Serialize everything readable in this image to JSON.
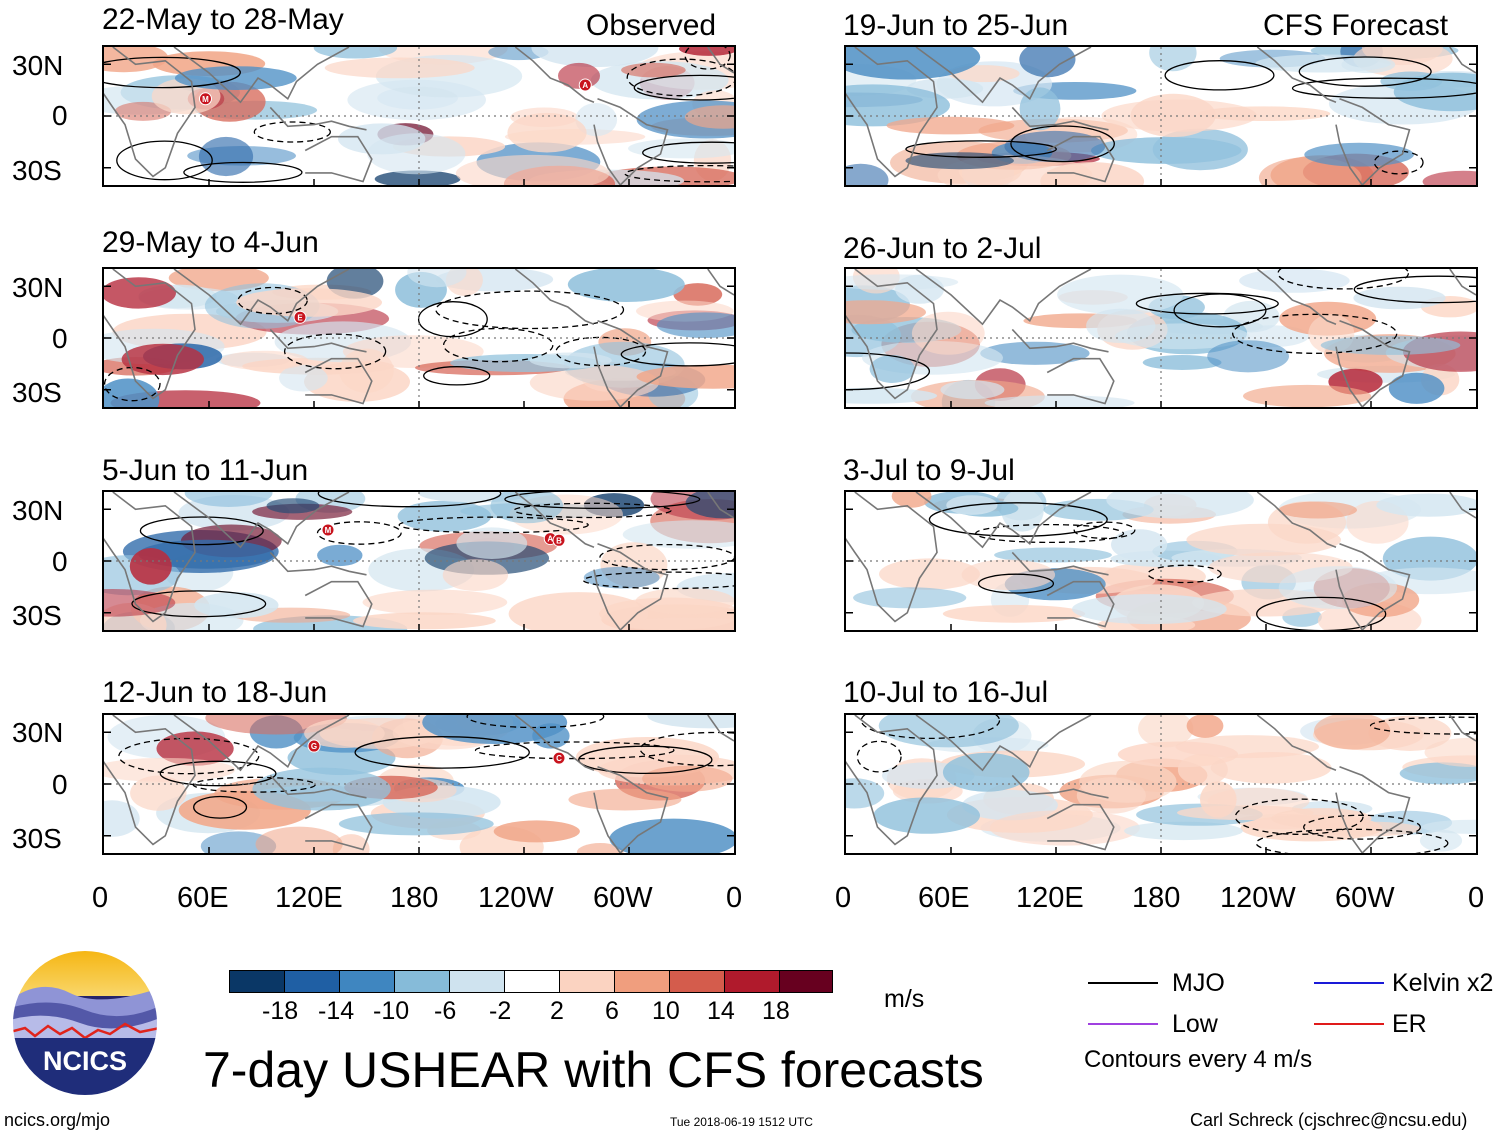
{
  "chart_data": {
    "type": "heatmap",
    "title": "7-day USHEAR with CFS forecasts",
    "units": "m/s",
    "observed_label": "Observed",
    "forecast_label": "CFS Forecast",
    "lat_ticks": [
      "30N",
      "0",
      "30S"
    ],
    "lon_ticks": [
      "0",
      "60E",
      "120E",
      "180",
      "120W",
      "60W",
      "0"
    ],
    "ylim": [
      -40,
      40
    ],
    "xlim": [
      0,
      360
    ],
    "panels": [
      {
        "group": "observed",
        "title": "22-May to 28-May",
        "storms": [
          {
            "lon": 58,
            "lat": 10,
            "label": "M"
          },
          {
            "lon": 275,
            "lat": 18,
            "label": "A"
          }
        ]
      },
      {
        "group": "observed",
        "title": "29-May to 4-Jun",
        "storms": [
          {
            "lon": 112,
            "lat": 12,
            "label": "E"
          }
        ]
      },
      {
        "group": "observed",
        "title": "5-Jun to 11-Jun",
        "storms": [
          {
            "lon": 128,
            "lat": 18,
            "label": "M"
          },
          {
            "lon": 255,
            "lat": 13,
            "label": "A"
          },
          {
            "lon": 260,
            "lat": 12,
            "label": "B"
          }
        ]
      },
      {
        "group": "observed",
        "title": "12-Jun to 18-Jun",
        "storms": [
          {
            "lon": 120,
            "lat": 22,
            "label": "G"
          },
          {
            "lon": 260,
            "lat": 15,
            "label": "C"
          }
        ]
      },
      {
        "group": "forecast",
        "title": "19-Jun to 25-Jun",
        "storms": []
      },
      {
        "group": "forecast",
        "title": "26-Jun to 2-Jul",
        "storms": []
      },
      {
        "group": "forecast",
        "title": "3-Jul to 9-Jul",
        "storms": []
      },
      {
        "group": "forecast",
        "title": "10-Jul to 16-Jul",
        "storms": []
      }
    ],
    "colorbar": {
      "labels": [
        "-18",
        "-14",
        "-10",
        "-6",
        "-2",
        "2",
        "6",
        "10",
        "14",
        "18"
      ],
      "colors": [
        "#0a3766",
        "#1f5fa4",
        "#3f86c0",
        "#86bbd9",
        "#cfe3ef",
        "#ffffff",
        "#fbd3c1",
        "#f09e7e",
        "#d45c4c",
        "#b01a2c",
        "#67001f"
      ]
    },
    "legend": [
      {
        "name": "MJO",
        "color": "#000000"
      },
      {
        "name": "Kelvin x2",
        "color": "#1a1ad8"
      },
      {
        "name": "Low",
        "color": "#a040e0"
      },
      {
        "name": "ER",
        "color": "#e01a1a"
      }
    ],
    "contour_note": "Contours every 4 m/s"
  },
  "footer": {
    "logo_text": "NCICS",
    "url": "ncics.org/mjo",
    "timestamp": "Tue 2018-06-19 1512 UTC",
    "credit": "Carl Schreck (cjschrec@ncsu.edu)"
  }
}
